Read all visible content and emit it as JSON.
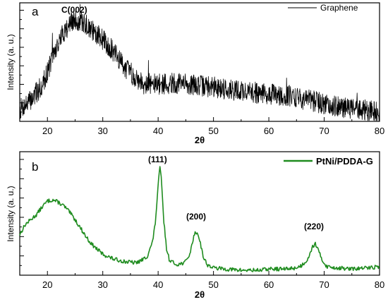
{
  "chart_data": [
    {
      "type": "line",
      "panel_label": "a",
      "xlabel": "2θ",
      "ylabel": "Intensity (a. u.)",
      "xlim": [
        15,
        80
      ],
      "ylim": [
        0,
        100
      ],
      "xticks": [
        "20",
        "30",
        "40",
        "50",
        "60",
        "70",
        "80"
      ],
      "y_tick_labels_shown": false,
      "grid": false,
      "legend_position": "top-right",
      "color": "#000000",
      "series": [
        {
          "name": "Graphene",
          "x": [
            15,
            17,
            19,
            20,
            21,
            22,
            23,
            24,
            25,
            26,
            27,
            28,
            29,
            30,
            31,
            32,
            33,
            34,
            35,
            36,
            37,
            38,
            40,
            42,
            44,
            46,
            48,
            50,
            53,
            56,
            60,
            64,
            68,
            72,
            76,
            80
          ],
          "y": [
            10,
            18,
            30,
            42,
            55,
            66,
            76,
            82,
            85,
            84,
            81,
            77,
            73,
            69,
            64,
            58,
            52,
            46,
            41,
            37,
            34,
            32,
            31,
            32,
            32,
            31,
            30,
            29,
            27,
            25,
            23,
            21,
            17,
            13,
            10,
            8
          ]
        }
      ],
      "annotations": [
        {
          "text": "C(002)",
          "x": 25,
          "y": 98
        }
      ]
    },
    {
      "type": "line",
      "panel_label": "b",
      "xlabel": "2θ",
      "ylabel": "Intensity (a. u.)",
      "xlim": [
        15,
        80
      ],
      "ylim": [
        0,
        100
      ],
      "xticks": [
        "20",
        "30",
        "40",
        "50",
        "60",
        "70",
        "80"
      ],
      "y_tick_labels_shown": false,
      "grid": false,
      "legend_position": "top-right",
      "color": "#1f8c1f",
      "series": [
        {
          "name": "PtNi/PDDA-G",
          "x": [
            15,
            16,
            17,
            18,
            19,
            20,
            21,
            22,
            23,
            24,
            25,
            26,
            27,
            28,
            30,
            32,
            34,
            36,
            37,
            38,
            39,
            39.5,
            40,
            40.3,
            40.6,
            41,
            41.5,
            42,
            43,
            44,
            45,
            45.8,
            46.5,
            47,
            47.5,
            48.2,
            49,
            50,
            52,
            55,
            58,
            60,
            63,
            65,
            66,
            67,
            67.8,
            68.4,
            69,
            69.8,
            70.5,
            72,
            75,
            78,
            80
          ],
          "y": [
            33,
            41,
            45,
            49,
            55,
            60,
            61,
            59,
            56,
            51,
            45,
            38,
            31,
            25,
            17,
            13,
            11,
            10,
            12,
            15,
            27,
            43,
            72,
            88,
            77,
            45,
            22,
            13,
            9,
            9,
            11,
            18,
            33,
            35,
            29,
            14,
            8,
            6,
            5,
            4,
            4,
            5,
            5,
            6,
            8,
            13,
            22,
            26,
            19,
            11,
            7,
            6,
            5,
            6,
            7
          ]
        }
      ],
      "annotations": [
        {
          "text": "(111)",
          "x": 40.3,
          "y": 96
        },
        {
          "text": "(200)",
          "x": 46.8,
          "y": 43
        },
        {
          "text": "(220)",
          "x": 68.4,
          "y": 34
        }
      ]
    }
  ]
}
